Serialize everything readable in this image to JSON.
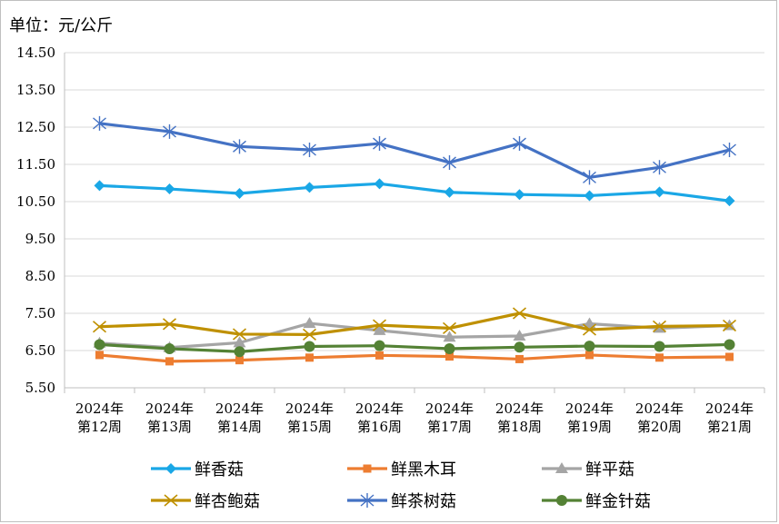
{
  "chart_data": {
    "type": "line",
    "unit_label": "单位：元/公斤",
    "categories": [
      [
        "2024年",
        "第12周"
      ],
      [
        "2024年",
        "第13周"
      ],
      [
        "2024年",
        "第14周"
      ],
      [
        "2024年",
        "第15周"
      ],
      [
        "2024年",
        "第16周"
      ],
      [
        "2024年",
        "第17周"
      ],
      [
        "2024年",
        "第18周"
      ],
      [
        "2024年",
        "第19周"
      ],
      [
        "2024年",
        "第20周"
      ],
      [
        "2024年",
        "第21周"
      ]
    ],
    "y_ticks": [
      "5.50",
      "6.50",
      "7.50",
      "8.50",
      "9.50",
      "10.50",
      "11.50",
      "12.50",
      "13.50",
      "14.50"
    ],
    "ylim": [
      5.5,
      14.5
    ],
    "grid": "horizontal",
    "legend_position": "bottom",
    "series": [
      {
        "name": "鲜香菇",
        "color": "#1aa7e6",
        "marker": "diamond",
        "values": [
          10.93,
          10.84,
          10.72,
          10.88,
          10.98,
          10.75,
          10.69,
          10.66,
          10.76,
          10.52
        ]
      },
      {
        "name": "鲜黑木耳",
        "color": "#ed7d31",
        "marker": "square",
        "values": [
          6.38,
          6.21,
          6.24,
          6.31,
          6.37,
          6.34,
          6.27,
          6.38,
          6.31,
          6.33
        ]
      },
      {
        "name": "鲜平菇",
        "color": "#a5a5a5",
        "marker": "triangle",
        "values": [
          6.7,
          6.58,
          6.71,
          7.23,
          7.04,
          6.86,
          6.89,
          7.22,
          7.1,
          7.17
        ]
      },
      {
        "name": "鲜杏鲍菇",
        "color": "#bf9000",
        "marker": "x",
        "values": [
          7.14,
          7.21,
          6.94,
          6.93,
          7.18,
          7.1,
          7.5,
          7.06,
          7.15,
          7.17
        ]
      },
      {
        "name": "鲜茶树菇",
        "color": "#4472c4",
        "marker": "star",
        "values": [
          12.6,
          12.38,
          11.98,
          11.89,
          12.06,
          11.55,
          12.06,
          11.15,
          11.42,
          11.89
        ]
      },
      {
        "name": "鲜金针菇",
        "color": "#548235",
        "marker": "circle",
        "values": [
          6.66,
          6.55,
          6.47,
          6.61,
          6.63,
          6.55,
          6.59,
          6.62,
          6.61,
          6.66
        ]
      }
    ]
  }
}
